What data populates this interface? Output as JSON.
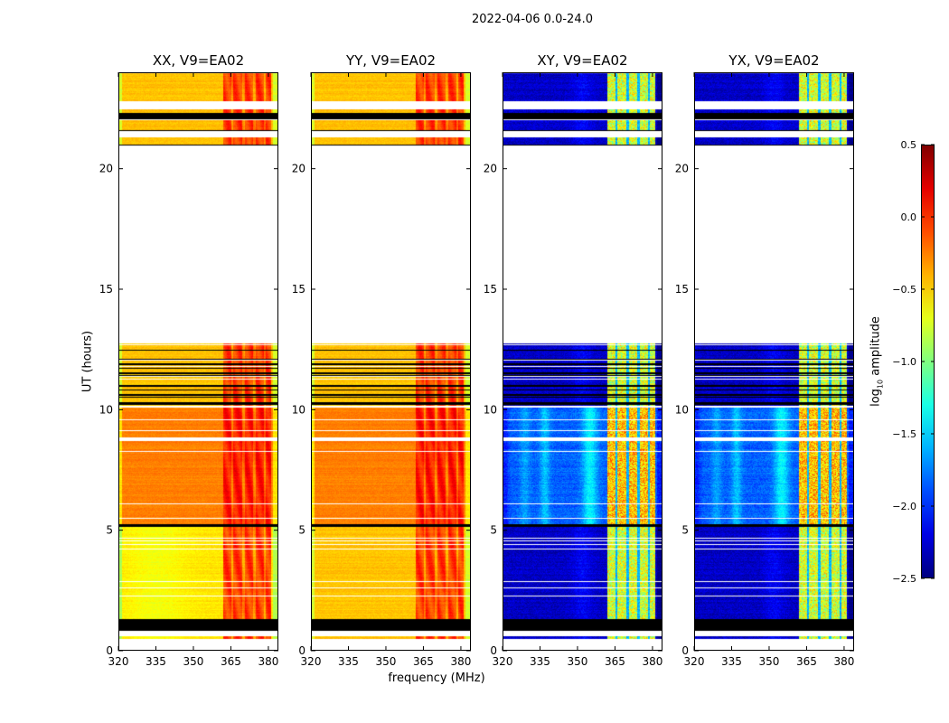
{
  "chart_data": {
    "type": "heatmap",
    "title": "2022-04-06 0.0-24.0",
    "xlabel": "frequency (MHz)",
    "ylabel": "UT (hours)",
    "xlim": [
      320,
      384
    ],
    "ylim": [
      0,
      24
    ],
    "xticks": [
      320,
      335,
      350,
      365,
      380
    ],
    "yticks": [
      0,
      5,
      10,
      15,
      20
    ],
    "panels": [
      {
        "title": "XX, V9=EA02",
        "pol": "XX",
        "kind": "parallel"
      },
      {
        "title": "YY, V9=EA02",
        "pol": "YY",
        "kind": "parallel"
      },
      {
        "title": "XY, V9=EA02",
        "pol": "XY",
        "kind": "cross"
      },
      {
        "title": "YX, V9=EA02",
        "pol": "YX",
        "kind": "cross"
      }
    ],
    "colorbar": {
      "label_main": "log",
      "label_sub": "10",
      "label_rest": " amplitude",
      "colormap": "jet",
      "range": [
        -2.5,
        0.5
      ],
      "ticks": [
        "0.5",
        "0.0",
        "−0.5",
        "−1.0",
        "−1.5",
        "−2.0",
        "−2.5"
      ],
      "tick_values": [
        0.5,
        0.0,
        -0.5,
        -1.0,
        -1.5,
        -2.0,
        -2.5
      ]
    },
    "time_blocks": [
      {
        "start": 0.5,
        "end": 0.6,
        "state": "dark"
      },
      {
        "start": 0.83,
        "end": 1.3,
        "state": "flagged"
      },
      {
        "start": 1.3,
        "end": 5.15,
        "state": "dark"
      },
      {
        "start": 5.15,
        "end": 5.25,
        "state": "flagged"
      },
      {
        "start": 5.25,
        "end": 8.7,
        "state": "bright"
      },
      {
        "start": 8.85,
        "end": 10.1,
        "state": "bright"
      },
      {
        "start": 10.15,
        "end": 12.75,
        "state": "striped"
      },
      {
        "start": 20.95,
        "end": 21.0,
        "state": "flagged"
      },
      {
        "start": 21.0,
        "end": 21.3,
        "state": "dark"
      },
      {
        "start": 21.55,
        "end": 21.6,
        "state": "flagged"
      },
      {
        "start": 21.6,
        "end": 22.0,
        "state": "dark"
      },
      {
        "start": 22.05,
        "end": 22.3,
        "state": "flagged"
      },
      {
        "start": 22.3,
        "end": 22.45,
        "state": "dark"
      },
      {
        "start": 22.8,
        "end": 24.0,
        "state": "dark"
      }
    ],
    "typical_levels": {
      "parallel_continuum": -0.45,
      "parallel_band_362_381": -0.05,
      "cross_dark": -2.3,
      "cross_bright": -1.85,
      "cross_band_362_381": -0.6
    },
    "band_edges_MHz": [
      362,
      381
    ],
    "subband_gaps_MHz": [
      365.5,
      370,
      374.5,
      378.5
    ]
  }
}
